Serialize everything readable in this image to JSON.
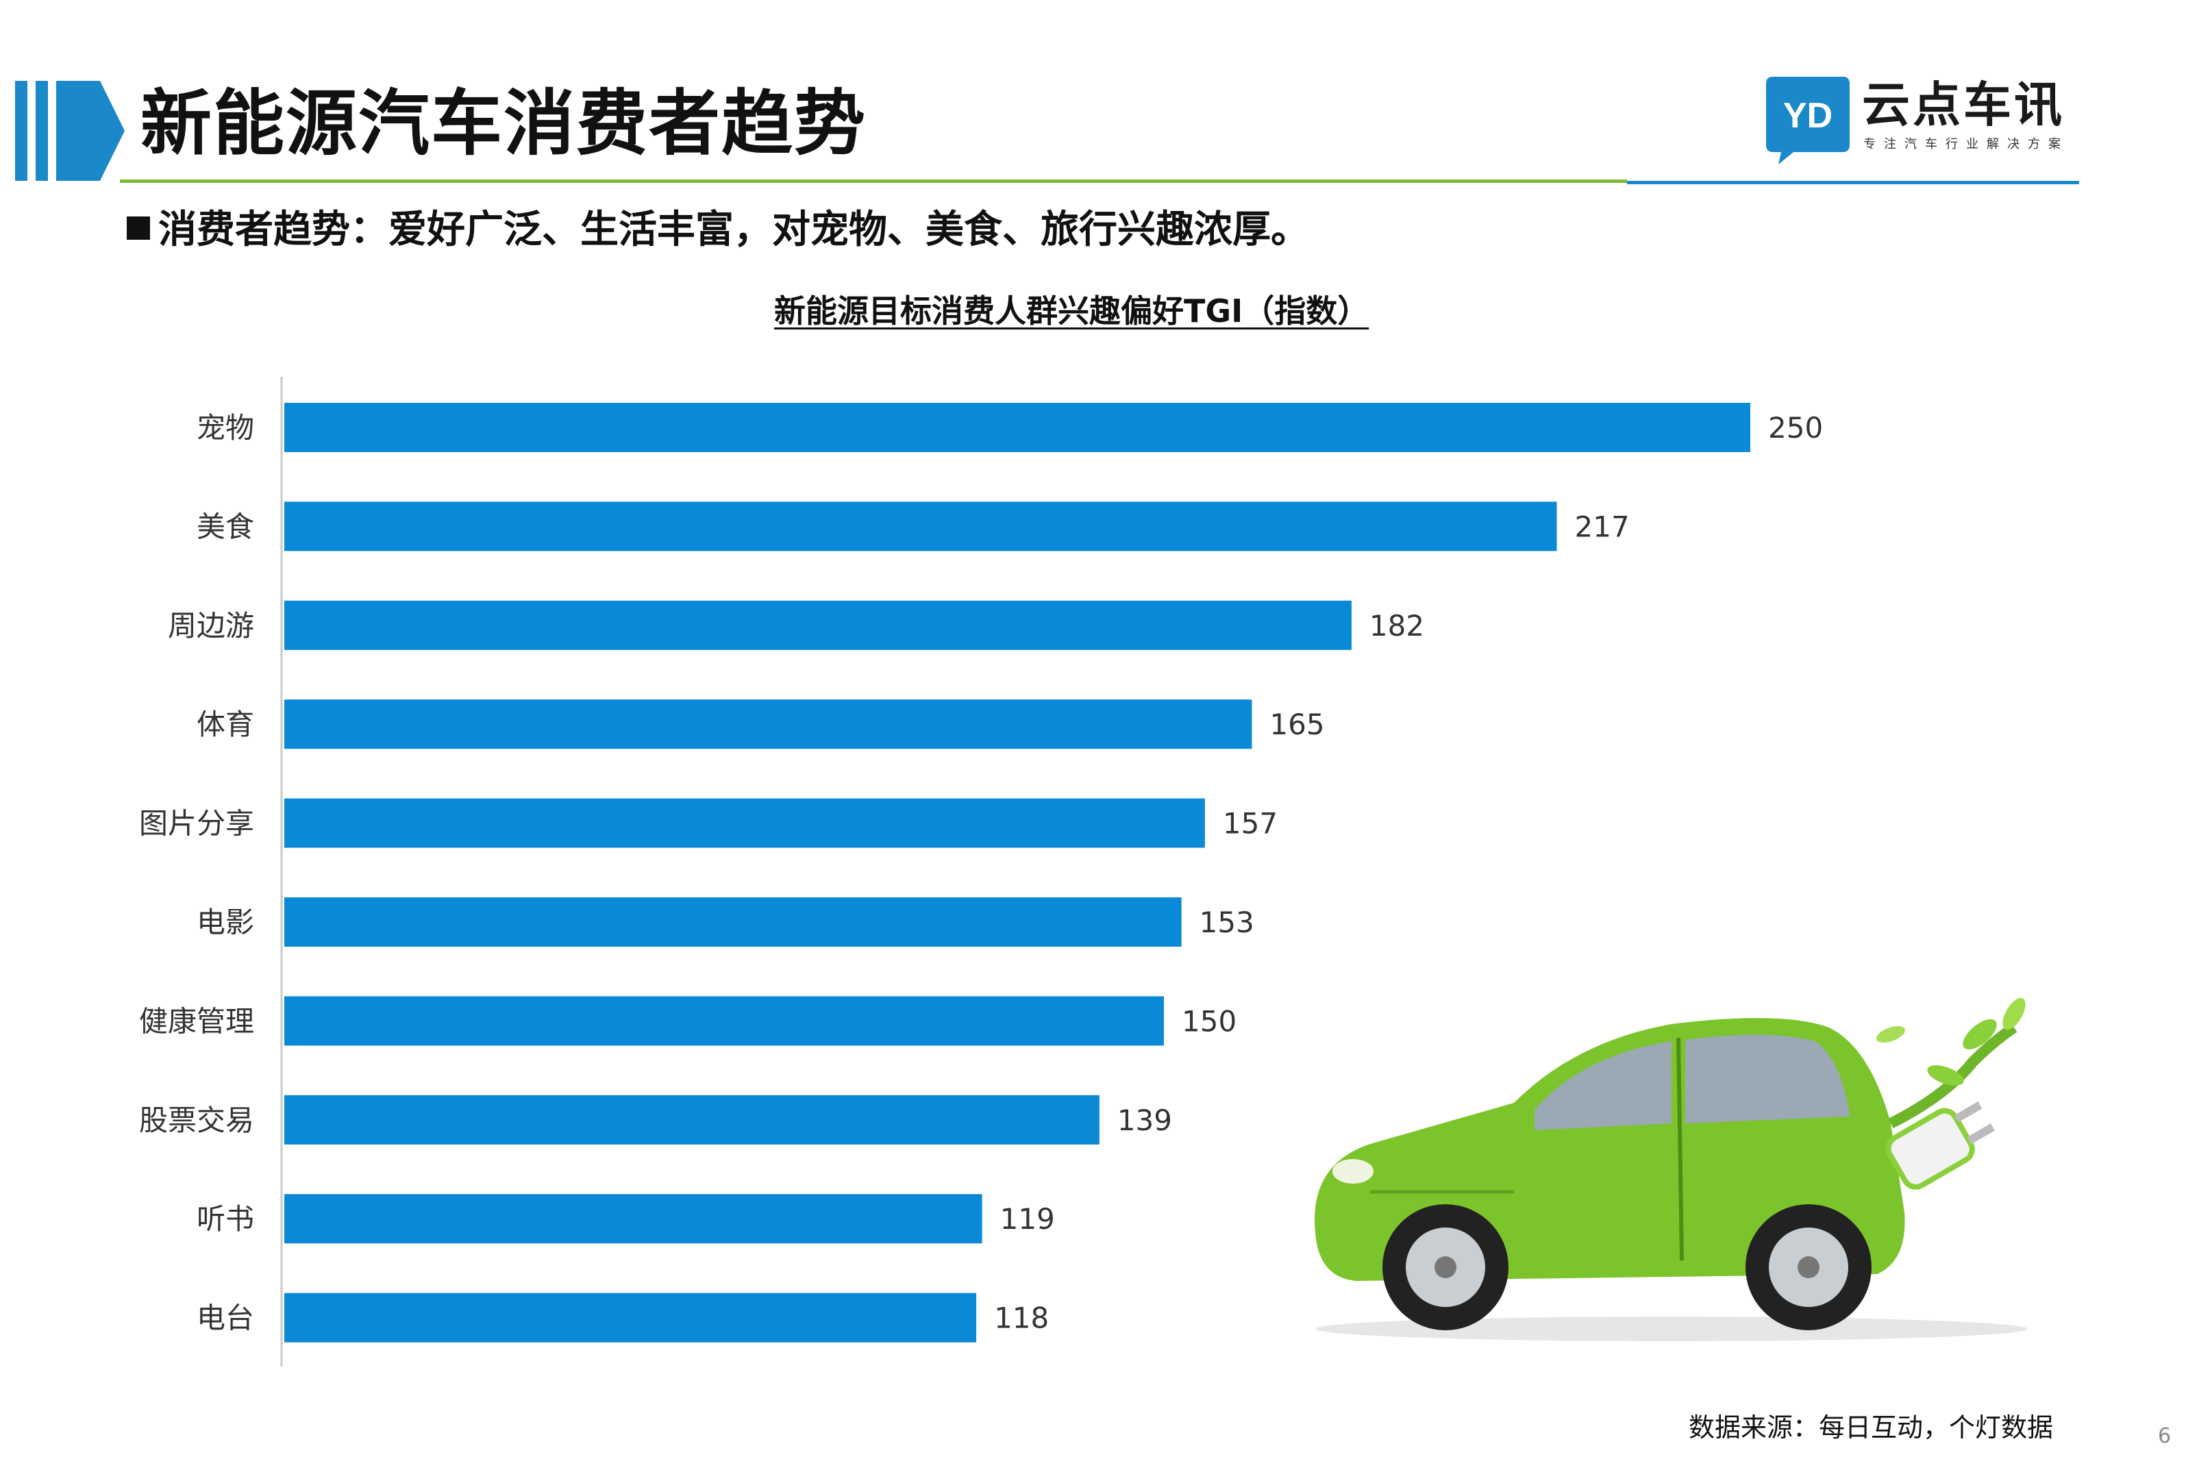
{
  "header": {
    "title": "新能源汽车消费者趋势",
    "logo_name": "云点车讯",
    "logo_slogan": "专注汽车行业解决方案",
    "logo_badge_text": "YD"
  },
  "subtitle": "消费者趋势：爱好广泛、生活丰富，对宠物、美食、旅行兴趣浓厚。",
  "chart_data": {
    "type": "bar",
    "orientation": "horizontal",
    "title": "新能源目标消费人群兴趣偏好TGI（指数）",
    "categories": [
      "宠物",
      "美食",
      "周边游",
      "体育",
      "图片分享",
      "电影",
      "健康管理",
      "股票交易",
      "听书",
      "电台"
    ],
    "values": [
      250,
      217,
      182,
      165,
      157,
      153,
      150,
      139,
      119,
      118
    ],
    "xlim": [
      0,
      250
    ],
    "xlabel": "",
    "ylabel": "",
    "grid": false,
    "legend": "none",
    "bar_color": "#0a8ad6",
    "data_labels": true
  },
  "source": "数据来源：每日互动，个灯数据",
  "page_number": "6",
  "colors": {
    "accent_blue": "#1a88c9",
    "header_green": "#7fb833",
    "bar_blue": "#0a8ad6",
    "car_green": "#7cc42b"
  }
}
